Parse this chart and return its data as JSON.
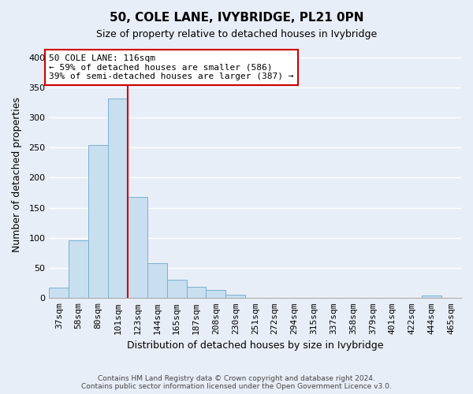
{
  "title": "50, COLE LANE, IVYBRIDGE, PL21 0PN",
  "subtitle": "Size of property relative to detached houses in Ivybridge",
  "xlabel": "Distribution of detached houses by size in Ivybridge",
  "ylabel": "Number of detached properties",
  "bin_labels": [
    "37sqm",
    "58sqm",
    "80sqm",
    "101sqm",
    "123sqm",
    "144sqm",
    "165sqm",
    "187sqm",
    "208sqm",
    "230sqm",
    "251sqm",
    "272sqm",
    "294sqm",
    "315sqm",
    "337sqm",
    "358sqm",
    "379sqm",
    "401sqm",
    "422sqm",
    "444sqm",
    "465sqm"
  ],
  "bar_heights": [
    17,
    96,
    254,
    332,
    168,
    58,
    30,
    19,
    13,
    5,
    1,
    1,
    0,
    0,
    0,
    1,
    0,
    0,
    0,
    4,
    0
  ],
  "bar_color": "#c8dff0",
  "bar_edge_color": "#7ab0cc",
  "vline_x": 3.5,
  "vline_color": "#cc0000",
  "annotation_text": "50 COLE LANE: 116sqm\n← 59% of detached houses are smaller (586)\n39% of semi-detached houses are larger (387) →",
  "annotation_box_facecolor": "#ffffff",
  "annotation_box_edgecolor": "#cc0000",
  "ylim": [
    0,
    410
  ],
  "yticks": [
    0,
    50,
    100,
    150,
    200,
    250,
    300,
    350,
    400
  ],
  "footnote": "Contains HM Land Registry data © Crown copyright and database right 2024.\nContains public sector information licensed under the Open Government Licence v3.0.",
  "bg_color": "#e8eef8",
  "grid_color": "#ffffff",
  "title_fontsize": 11,
  "subtitle_fontsize": 9,
  "ylabel_fontsize": 9,
  "xlabel_fontsize": 9,
  "tick_fontsize": 8,
  "annot_fontsize": 8,
  "footnote_fontsize": 6.5
}
